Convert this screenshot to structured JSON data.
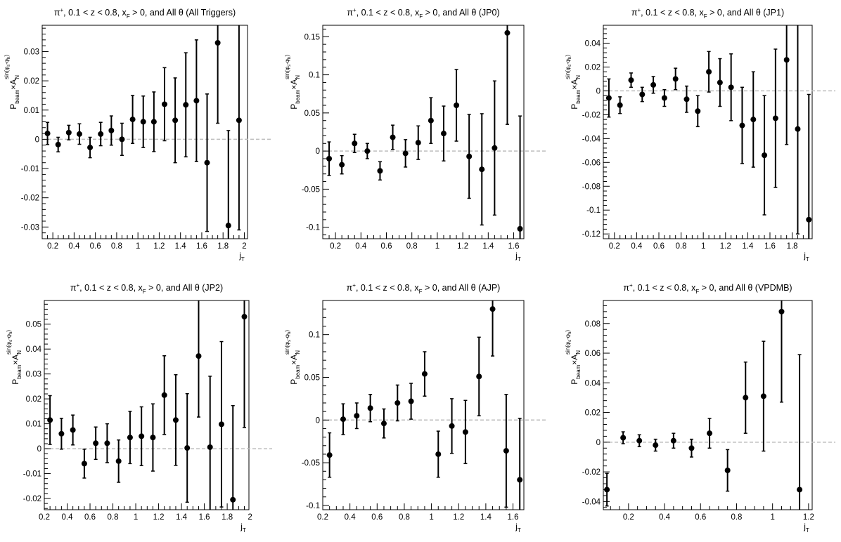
{
  "chart_data": [
    {
      "type": "scatter",
      "title": "π⁺, 0.1 < z < 0.8, x_F > 0, and All θ (All Triggers)",
      "title_parts": {
        "p": "π",
        "sup": "+",
        "a": ", 0.1 < z < 0.8, x",
        "sub": "F",
        "b": " > 0, and All θ (All Triggers)"
      },
      "xlabel": "j_T",
      "ylabel": "P_beam × A_N^sin(φs−φh)",
      "xlim": [
        0.1,
        2.03
      ],
      "ylim": [
        -0.034,
        0.039
      ],
      "xticks": [
        0.2,
        0.4,
        0.6,
        0.8,
        1,
        1.2,
        1.4,
        1.6,
        1.8,
        2
      ],
      "xticklabels": [
        "0.2",
        "0.4",
        "0.6",
        "0.8",
        "1",
        "1.2",
        "1.4",
        "1.6",
        "1.8",
        "2"
      ],
      "yticks": [
        -0.03,
        -0.02,
        -0.01,
        0,
        0.01,
        0.02,
        0.03
      ],
      "yticklabels": [
        "-0.03",
        "-0.02",
        "-0.01",
        "0",
        "0.01",
        "0.02",
        "0.03"
      ],
      "x": [
        0.15,
        0.25,
        0.35,
        0.45,
        0.55,
        0.65,
        0.75,
        0.85,
        0.95,
        1.05,
        1.15,
        1.25,
        1.35,
        1.45,
        1.55,
        1.65,
        1.75,
        1.85,
        1.95
      ],
      "y": [
        0.002,
        -0.0018,
        0.0023,
        0.0018,
        -0.0028,
        0.0018,
        0.003,
        0.0,
        0.0068,
        0.006,
        0.006,
        0.012,
        0.0065,
        0.0118,
        0.0132,
        -0.008,
        0.033,
        -0.0295,
        0.0065
      ],
      "err": [
        0.0038,
        0.0025,
        0.0025,
        0.0035,
        0.0035,
        0.004,
        0.005,
        0.0055,
        0.0082,
        0.0088,
        0.0102,
        0.0125,
        0.0145,
        0.0178,
        0.0208,
        0.0235,
        0.0275,
        0.0325,
        0.0375
      ]
    },
    {
      "type": "scatter",
      "title": "π⁺, 0.1 < z < 0.8, x_F > 0, and All θ (JP0)",
      "title_parts": {
        "p": "π",
        "sup": "+",
        "a": ", 0.1 < z < 0.8, x",
        "sub": "F",
        "b": " > 0, and All θ (JP0)"
      },
      "xlabel": "j_T",
      "ylabel": "P_beam × A_N^sin(φs−φh)",
      "xlim": [
        0.1,
        1.68
      ],
      "ylim": [
        -0.115,
        0.165
      ],
      "xticks": [
        0.2,
        0.4,
        0.6,
        0.8,
        1,
        1.2,
        1.4,
        1.6
      ],
      "xticklabels": [
        "0.2",
        "0.4",
        "0.6",
        "0.8",
        "1",
        "1.2",
        "1.4",
        "1.6"
      ],
      "yticks": [
        -0.1,
        -0.05,
        0,
        0.05,
        0.1,
        0.15
      ],
      "yticklabels": [
        "-0.1",
        "-0.05",
        "0",
        "0.05",
        "0.1",
        "0.15"
      ],
      "x": [
        0.15,
        0.25,
        0.35,
        0.45,
        0.55,
        0.65,
        0.75,
        0.85,
        0.95,
        1.05,
        1.15,
        1.25,
        1.35,
        1.45,
        1.55,
        1.65
      ],
      "y": [
        -0.01,
        -0.018,
        0.01,
        0.0,
        -0.026,
        0.018,
        -0.003,
        0.011,
        0.04,
        0.023,
        0.06,
        -0.007,
        -0.024,
        0.004,
        0.155,
        -0.102
      ],
      "err": [
        0.022,
        0.012,
        0.012,
        0.01,
        0.012,
        0.016,
        0.018,
        0.022,
        0.03,
        0.036,
        0.047,
        0.055,
        0.073,
        0.088,
        0.12,
        0.148
      ]
    },
    {
      "type": "scatter",
      "title": "π⁺, 0.1 < z < 0.8, x_F > 0, and All θ (JP1)",
      "title_parts": {
        "p": "π",
        "sup": "+",
        "a": ", 0.1 < z < 0.8, x",
        "sub": "F",
        "b": " > 0, and All θ (JP1)"
      },
      "xlabel": "j_T",
      "ylabel": "P_beam × A_N^sin(φs−φh)",
      "xlim": [
        0.1,
        1.98
      ],
      "ylim": [
        -0.124,
        0.055
      ],
      "xticks": [
        0.2,
        0.4,
        0.6,
        0.8,
        1,
        1.2,
        1.4,
        1.6,
        1.8
      ],
      "xticklabels": [
        "0.2",
        "0.4",
        "0.6",
        "0.8",
        "1",
        "1.2",
        "1.4",
        "1.6",
        "1.8"
      ],
      "yticks": [
        -0.12,
        -0.1,
        -0.08,
        -0.06,
        -0.04,
        -0.02,
        0,
        0.02,
        0.04
      ],
      "yticklabels": [
        "-0.12",
        "-0.1",
        "-0.08",
        "-0.06",
        "-0.04",
        "-0.02",
        "0",
        "0.02",
        "0.04"
      ],
      "x": [
        0.15,
        0.25,
        0.35,
        0.45,
        0.55,
        0.65,
        0.75,
        0.85,
        0.95,
        1.05,
        1.15,
        1.25,
        1.35,
        1.45,
        1.55,
        1.65,
        1.75,
        1.85,
        1.95
      ],
      "y": [
        -0.006,
        -0.012,
        0.009,
        -0.003,
        0.005,
        -0.006,
        0.01,
        -0.007,
        -0.017,
        0.016,
        0.007,
        0.003,
        -0.029,
        -0.024,
        -0.054,
        -0.023,
        0.026,
        -0.032,
        -0.108
      ],
      "err": [
        0.016,
        0.007,
        0.006,
        0.006,
        0.007,
        0.007,
        0.009,
        0.011,
        0.013,
        0.017,
        0.02,
        0.028,
        0.032,
        0.04,
        0.05,
        0.058,
        0.071,
        0.088,
        0.105
      ]
    },
    {
      "type": "scatter",
      "title": "π⁺, 0.1 < z < 0.8, x_F > 0, and All θ (JP2)",
      "title_parts": {
        "p": "π",
        "sup": "+",
        "a": ", 0.1 < z < 0.8, x",
        "sub": "F",
        "b": " > 0, and All θ (JP2)"
      },
      "xlabel": "j_T",
      "ylabel": "P_beam × A_N^sin(φs−φh)",
      "xlim": [
        0.2,
        1.99
      ],
      "ylim": [
        -0.0245,
        0.0595
      ],
      "xticks": [
        0.2,
        0.4,
        0.6,
        0.8,
        1,
        1.2,
        1.4,
        1.6,
        1.8,
        2
      ],
      "xticklabels": [
        "0.2",
        "0.4",
        "0.6",
        "0.8",
        "1",
        "1.2",
        "1.4",
        "1.6",
        "1.8",
        "2"
      ],
      "yticks": [
        -0.02,
        -0.01,
        0,
        0.01,
        0.02,
        0.03,
        0.04,
        0.05
      ],
      "yticklabels": [
        "-0.02",
        "-0.01",
        "0",
        "0.01",
        "0.02",
        "0.03",
        "0.04",
        "0.05"
      ],
      "x": [
        0.25,
        0.35,
        0.45,
        0.55,
        0.65,
        0.75,
        0.85,
        0.95,
        1.05,
        1.15,
        1.25,
        1.35,
        1.45,
        1.55,
        1.65,
        1.75,
        1.85,
        1.95
      ],
      "y": [
        0.0115,
        0.006,
        0.0075,
        -0.006,
        0.0022,
        0.0022,
        -0.005,
        0.0045,
        0.005,
        0.0045,
        0.0215,
        0.0115,
        0.0003,
        0.0372,
        0.0006,
        0.0098,
        -0.0205,
        0.053
      ],
      "err": [
        0.0098,
        0.0062,
        0.006,
        0.0058,
        0.0065,
        0.0078,
        0.0085,
        0.0105,
        0.0118,
        0.0135,
        0.0158,
        0.0182,
        0.0218,
        0.0245,
        0.0285,
        0.0332,
        0.0378,
        0.0445
      ]
    },
    {
      "type": "scatter",
      "title": "π⁺, 0.1 < z < 0.8, x_F > 0, and All θ (AJP)",
      "title_parts": {
        "p": "π",
        "sup": "+",
        "a": ", 0.1 < z < 0.8, x",
        "sub": "F",
        "b": " > 0, and All θ (AJP)"
      },
      "xlabel": "j_T",
      "ylabel": "P_beam × A_N^sin(φs−φh)",
      "xlim": [
        0.2,
        1.68
      ],
      "ylim": [
        -0.105,
        0.14
      ],
      "xticks": [
        0.2,
        0.4,
        0.6,
        0.8,
        1,
        1.2,
        1.4,
        1.6
      ],
      "xticklabels": [
        "0.2",
        "0.4",
        "0.6",
        "0.8",
        "1",
        "1.2",
        "1.4",
        "1.6"
      ],
      "yticks": [
        -0.1,
        -0.05,
        0,
        0.05,
        0.1
      ],
      "yticklabels": [
        "-0.1",
        "-0.05",
        "0",
        "0.05",
        "0.1"
      ],
      "x": [
        0.25,
        0.35,
        0.45,
        0.55,
        0.65,
        0.75,
        0.85,
        0.95,
        1.05,
        1.15,
        1.25,
        1.35,
        1.45,
        1.55,
        1.65
      ],
      "y": [
        -0.041,
        0.001,
        0.005,
        0.014,
        -0.004,
        0.02,
        0.022,
        0.054,
        -0.04,
        -0.007,
        -0.014,
        0.051,
        0.13,
        -0.036,
        -0.07
      ],
      "err": [
        0.026,
        0.018,
        0.015,
        0.016,
        0.017,
        0.021,
        0.021,
        0.026,
        0.027,
        0.032,
        0.037,
        0.046,
        0.055,
        0.066,
        0.072
      ]
    },
    {
      "type": "scatter",
      "title": "π⁺, 0.1 < z < 0.8, x_F > 0, and All θ (VPDMB)",
      "title_parts": {
        "p": "π",
        "sup": "+",
        "a": ", 0.1 < z < 0.8, x",
        "sub": "F",
        "b": " > 0, and All θ (VPDMB)"
      },
      "xlabel": "j_T",
      "ylabel": "P_beam × A_N^sin(φs−φh)",
      "xlim": [
        0.06,
        1.22
      ],
      "ylim": [
        -0.0455,
        0.0955
      ],
      "xticks": [
        0.2,
        0.4,
        0.6,
        0.8,
        1,
        1.2
      ],
      "xticklabels": [
        "0.2",
        "0.4",
        "0.6",
        "0.8",
        "1",
        "1.2"
      ],
      "yticks": [
        -0.04,
        -0.02,
        0,
        0.02,
        0.04,
        0.06,
        0.08
      ],
      "yticklabels": [
        "-0.04",
        "-0.02",
        "0",
        "0.02",
        "0.04",
        "0.06",
        "0.08"
      ],
      "x": [
        0.08,
        0.17,
        0.26,
        0.35,
        0.45,
        0.55,
        0.65,
        0.75,
        0.85,
        0.95,
        1.05,
        1.15
      ],
      "y": [
        -0.032,
        0.003,
        0.001,
        -0.002,
        0.001,
        -0.004,
        0.006,
        -0.019,
        0.03,
        0.031,
        0.088,
        -0.032
      ],
      "err": [
        0.011,
        0.004,
        0.004,
        0.004,
        0.005,
        0.006,
        0.01,
        0.014,
        0.024,
        0.037,
        0.061,
        0.091
      ]
    }
  ]
}
